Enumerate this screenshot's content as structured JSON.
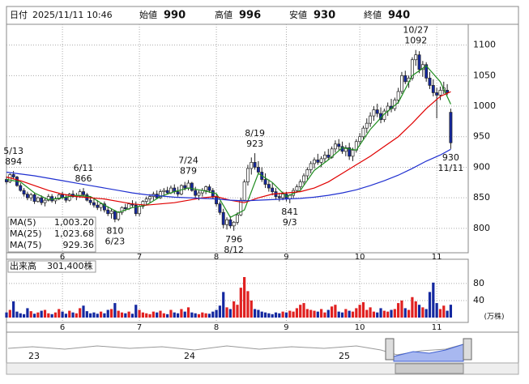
{
  "header": {
    "date_label": "日付",
    "date": "2025/11/11 10:46",
    "items": [
      {
        "label": "始値",
        "value": 990,
        "color": "#111111"
      },
      {
        "label": "高値",
        "value": 996,
        "color": "#e00000"
      },
      {
        "label": "安値",
        "value": 930,
        "color": "#008000"
      },
      {
        "label": "終値",
        "value": 940,
        "color": "#111111"
      }
    ]
  },
  "chart_data": {
    "type": "candlestick",
    "up_color": "#ffffff",
    "down_color": "#1428a0",
    "outline_color": "#222222",
    "xlim": [
      0,
      132
    ],
    "xticks": [
      {
        "value": 16,
        "label": "6"
      },
      {
        "value": 38,
        "label": "7"
      },
      {
        "value": 60,
        "label": "8"
      },
      {
        "value": 80,
        "label": "9"
      },
      {
        "value": 101,
        "label": "10"
      },
      {
        "value": 123,
        "label": "11"
      }
    ],
    "ylim": [
      760,
      1134
    ],
    "yticks": [
      800,
      850,
      900,
      950,
      1000,
      1050,
      1100
    ],
    "grid": true,
    "ohlc": [
      [
        880,
        885,
        872,
        876
      ],
      [
        876,
        890,
        874,
        888
      ],
      [
        888,
        894,
        880,
        884
      ],
      [
        884,
        886,
        868,
        870
      ],
      [
        870,
        874,
        860,
        862
      ],
      [
        862,
        866,
        852,
        856
      ],
      [
        856,
        860,
        846,
        850
      ],
      [
        850,
        858,
        845,
        855
      ],
      [
        855,
        858,
        840,
        844
      ],
      [
        844,
        852,
        842,
        850
      ],
      [
        850,
        854,
        838,
        842
      ],
      [
        842,
        850,
        836,
        846
      ],
      [
        846,
        856,
        844,
        852
      ],
      [
        852,
        856,
        842,
        845
      ],
      [
        845,
        852,
        840,
        848
      ],
      [
        848,
        858,
        846,
        855
      ],
      [
        855,
        860,
        848,
        850
      ],
      [
        850,
        856,
        842,
        846
      ],
      [
        846,
        858,
        844,
        856
      ],
      [
        856,
        862,
        850,
        852
      ],
      [
        852,
        858,
        846,
        854
      ],
      [
        854,
        864,
        850,
        860
      ],
      [
        860,
        866,
        852,
        855
      ],
      [
        855,
        858,
        844,
        846
      ],
      [
        846,
        852,
        838,
        842
      ],
      [
        842,
        848,
        834,
        838
      ],
      [
        838,
        846,
        830,
        834
      ],
      [
        834,
        842,
        828,
        840
      ],
      [
        840,
        844,
        826,
        830
      ],
      [
        830,
        836,
        820,
        824
      ],
      [
        824,
        832,
        816,
        828
      ],
      [
        828,
        830,
        810,
        815
      ],
      [
        815,
        828,
        812,
        826
      ],
      [
        826,
        836,
        822,
        834
      ],
      [
        834,
        840,
        828,
        832
      ],
      [
        832,
        842,
        830,
        840
      ],
      [
        840,
        846,
        834,
        838
      ],
      [
        838,
        844,
        820,
        824
      ],
      [
        824,
        838,
        820,
        836
      ],
      [
        836,
        846,
        832,
        844
      ],
      [
        844,
        852,
        838,
        848
      ],
      [
        848,
        856,
        842,
        852
      ],
      [
        852,
        860,
        846,
        856
      ],
      [
        856,
        862,
        848,
        850
      ],
      [
        850,
        864,
        848,
        860
      ],
      [
        860,
        866,
        854,
        862
      ],
      [
        862,
        868,
        856,
        858
      ],
      [
        858,
        870,
        856,
        866
      ],
      [
        866,
        872,
        856,
        860
      ],
      [
        860,
        868,
        852,
        856
      ],
      [
        856,
        872,
        854,
        870
      ],
      [
        870,
        876,
        862,
        866
      ],
      [
        866,
        879,
        862,
        874
      ],
      [
        874,
        876,
        860,
        862
      ],
      [
        862,
        868,
        850,
        854
      ],
      [
        854,
        862,
        846,
        858
      ],
      [
        858,
        866,
        852,
        862
      ],
      [
        862,
        870,
        856,
        868
      ],
      [
        868,
        872,
        858,
        862
      ],
      [
        862,
        866,
        848,
        852
      ],
      [
        852,
        856,
        836,
        840
      ],
      [
        840,
        844,
        822,
        826
      ],
      [
        826,
        832,
        800,
        806
      ],
      [
        806,
        818,
        798,
        814
      ],
      [
        814,
        820,
        800,
        804
      ],
      [
        804,
        812,
        796,
        810
      ],
      [
        810,
        826,
        806,
        822
      ],
      [
        822,
        850,
        820,
        846
      ],
      [
        846,
        880,
        844,
        876
      ],
      [
        876,
        904,
        870,
        898
      ],
      [
        898,
        916,
        888,
        908
      ],
      [
        908,
        923,
        896,
        900
      ],
      [
        900,
        910,
        888,
        892
      ],
      [
        892,
        900,
        876,
        880
      ],
      [
        880,
        890,
        866,
        872
      ],
      [
        872,
        880,
        860,
        866
      ],
      [
        866,
        874,
        854,
        860
      ],
      [
        860,
        866,
        848,
        852
      ],
      [
        852,
        858,
        844,
        850
      ],
      [
        850,
        860,
        846,
        856
      ],
      [
        856,
        860,
        844,
        848
      ],
      [
        848,
        856,
        841,
        854
      ],
      [
        854,
        866,
        850,
        862
      ],
      [
        862,
        872,
        858,
        868
      ],
      [
        868,
        880,
        864,
        876
      ],
      [
        876,
        890,
        872,
        886
      ],
      [
        886,
        900,
        880,
        896
      ],
      [
        896,
        910,
        890,
        906
      ],
      [
        906,
        916,
        898,
        912
      ],
      [
        912,
        922,
        904,
        908
      ],
      [
        908,
        918,
        900,
        914
      ],
      [
        914,
        926,
        908,
        920
      ],
      [
        920,
        930,
        912,
        916
      ],
      [
        916,
        934,
        914,
        930
      ],
      [
        930,
        944,
        924,
        938
      ],
      [
        938,
        946,
        928,
        934
      ],
      [
        934,
        942,
        922,
        926
      ],
      [
        926,
        936,
        918,
        932
      ],
      [
        932,
        940,
        912,
        918
      ],
      [
        918,
        932,
        910,
        928
      ],
      [
        928,
        946,
        924,
        942
      ],
      [
        942,
        956,
        936,
        950
      ],
      [
        950,
        968,
        946,
        964
      ],
      [
        964,
        980,
        956,
        972
      ],
      [
        972,
        990,
        966,
        984
      ],
      [
        984,
        1000,
        976,
        994
      ],
      [
        994,
        1004,
        982,
        988
      ],
      [
        988,
        998,
        972,
        978
      ],
      [
        978,
        996,
        974,
        992
      ],
      [
        992,
        1006,
        984,
        1000
      ],
      [
        1000,
        1012,
        990,
        996
      ],
      [
        996,
        1014,
        992,
        1010
      ],
      [
        1010,
        1030,
        1004,
        1024
      ],
      [
        1024,
        1056,
        1020,
        1050
      ],
      [
        1050,
        1058,
        1036,
        1040
      ],
      [
        1040,
        1050,
        1030,
        1046
      ],
      [
        1046,
        1080,
        1042,
        1076
      ],
      [
        1076,
        1092,
        1066,
        1084
      ],
      [
        1084,
        1090,
        1054,
        1060
      ],
      [
        1060,
        1074,
        1048,
        1068
      ],
      [
        1068,
        1072,
        1040,
        1046
      ],
      [
        1046,
        1056,
        1028,
        1034
      ],
      [
        1034,
        1044,
        1016,
        1022
      ],
      [
        1022,
        1030,
        980,
        1018
      ],
      [
        1018,
        1032,
        1010,
        1026
      ],
      [
        1026,
        1040,
        1020,
        1030
      ],
      [
        1026,
        1036,
        1018,
        1022
      ],
      [
        990,
        996,
        930,
        940
      ]
    ],
    "series": [
      {
        "name": "MA(5)",
        "color": "#1e8c1e",
        "value_label": "1,003.20",
        "x": [
          0,
          4,
          8,
          12,
          16,
          20,
          24,
          28,
          32,
          36,
          40,
          44,
          48,
          52,
          56,
          60,
          64,
          68,
          72,
          76,
          80,
          84,
          88,
          92,
          96,
          100,
          104,
          108,
          112,
          116,
          120,
          124,
          127
        ],
        "values": [
          880,
          876,
          858,
          847,
          850,
          854,
          852,
          838,
          826,
          834,
          838,
          852,
          860,
          866,
          862,
          857,
          818,
          830,
          890,
          875,
          852,
          862,
          895,
          912,
          932,
          928,
          962,
          987,
          1006,
          1050,
          1066,
          1040,
          1003.2
        ]
      },
      {
        "name": "MA(25)",
        "color": "#e00000",
        "value_label": "1,023.68",
        "x": [
          0,
          4,
          8,
          12,
          16,
          20,
          24,
          28,
          32,
          36,
          40,
          44,
          48,
          52,
          56,
          60,
          64,
          68,
          72,
          76,
          80,
          84,
          88,
          92,
          96,
          100,
          104,
          108,
          112,
          116,
          120,
          124,
          127
        ],
        "values": [
          884,
          878,
          870,
          862,
          856,
          852,
          850,
          848,
          844,
          840,
          838,
          840,
          842,
          846,
          850,
          852,
          846,
          842,
          850,
          856,
          858,
          860,
          866,
          876,
          890,
          904,
          918,
          934,
          950,
          972,
          996,
          1016,
          1023.68
        ]
      },
      {
        "name": "MA(75)",
        "color": "#2030d0",
        "value_label": "929.36",
        "x": [
          0,
          4,
          8,
          12,
          16,
          20,
          24,
          28,
          32,
          36,
          40,
          44,
          48,
          52,
          56,
          60,
          64,
          68,
          72,
          76,
          80,
          84,
          88,
          92,
          96,
          100,
          104,
          108,
          112,
          116,
          120,
          124,
          127
        ],
        "values": [
          892,
          889,
          886,
          882,
          878,
          874,
          870,
          866,
          862,
          858,
          855,
          853,
          851,
          850,
          849,
          848,
          846,
          845,
          846,
          847,
          848,
          849,
          851,
          854,
          858,
          863,
          870,
          878,
          887,
          898,
          910,
          920,
          929.36
        ]
      }
    ],
    "annotations": [
      {
        "date": "5/13",
        "value": 894,
        "x": 2,
        "side": "above"
      },
      {
        "date": "6/11",
        "value": 866,
        "x": 22,
        "side": "above"
      },
      {
        "date": "6/23",
        "value": 810,
        "x": 31,
        "side": "below"
      },
      {
        "date": "7/24",
        "value": 879,
        "x": 52,
        "side": "above"
      },
      {
        "date": "8/12",
        "value": 796,
        "x": 65,
        "side": "below"
      },
      {
        "date": "8/19",
        "value": 923,
        "x": 71,
        "side": "above"
      },
      {
        "date": "9/3",
        "value": 841,
        "x": 81,
        "side": "below"
      },
      {
        "date": "10/27",
        "value": 1092,
        "x": 117,
        "side": "above"
      },
      {
        "date": "11/11",
        "value": 930,
        "x": 127,
        "side": "below"
      }
    ],
    "volume": {
      "title": "出来高",
      "label": "301,400株",
      "unit": "(万株)",
      "ylim": [
        0,
        133
      ],
      "yticks": [
        40,
        80
      ],
      "up_color": "#e02020",
      "down_color": "#1428a0",
      "values": [
        12,
        18,
        38,
        14,
        10,
        8,
        22,
        15,
        9,
        12,
        16,
        18,
        10,
        8,
        12,
        20,
        14,
        9,
        16,
        12,
        10,
        22,
        28,
        15,
        10,
        12,
        9,
        14,
        10,
        18,
        20,
        34,
        16,
        12,
        10,
        14,
        9,
        30,
        18,
        12,
        10,
        8,
        14,
        12,
        16,
        10,
        8,
        18,
        12,
        10,
        20,
        14,
        24,
        12,
        10,
        8,
        12,
        10,
        9,
        14,
        18,
        28,
        60,
        24,
        20,
        38,
        30,
        70,
        95,
        62,
        40,
        20,
        18,
        14,
        12,
        10,
        8,
        12,
        10,
        14,
        12,
        16,
        14,
        22,
        30,
        34,
        20,
        18,
        16,
        14,
        20,
        12,
        18,
        26,
        30,
        14,
        12,
        20,
        16,
        14,
        22,
        30,
        36,
        18,
        24,
        14,
        12,
        22,
        16,
        14,
        18,
        20,
        34,
        40,
        22,
        18,
        48,
        38,
        30,
        24,
        20,
        60,
        82,
        34,
        20,
        28,
        16,
        30.14
      ]
    }
  },
  "navigator": {
    "labels": [
      "23",
      "24",
      "25"
    ]
  }
}
